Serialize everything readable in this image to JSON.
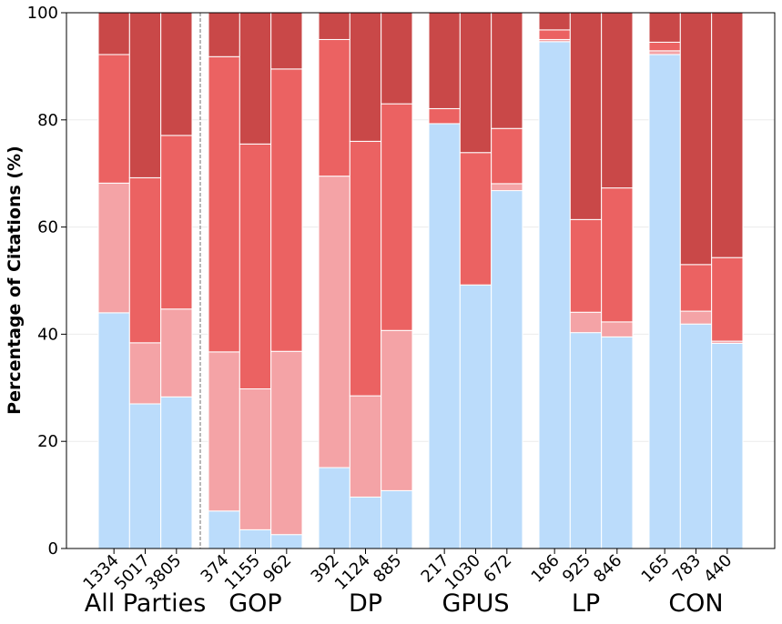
{
  "chart_data": {
    "type": "bar",
    "stacked": true,
    "ylabel": "Percentage of Citations (%)",
    "xlabel": "",
    "ylim": [
      0,
      100
    ],
    "yticks": [
      "0",
      "20",
      "40",
      "60",
      "80",
      "100"
    ],
    "grid": "horizontal",
    "separator_after_group": "All Parties",
    "segment_colors": [
      "#bbdcfb",
      "#f4a3a6",
      "#eb6262",
      "#c94848"
    ],
    "groups": [
      {
        "name": "All Parties",
        "bars": [
          {
            "label": "1334",
            "segments": [
              44,
              24.2,
              24,
              7.8
            ]
          },
          {
            "label": "5017",
            "segments": [
              27,
              11.4,
              30.8,
              30.8
            ]
          },
          {
            "label": "3805",
            "segments": [
              28.3,
              16.4,
              32.4,
              22.9
            ]
          }
        ]
      },
      {
        "name": "GOP",
        "bars": [
          {
            "label": "374",
            "segments": [
              7,
              29.7,
              55.1,
              8.2
            ]
          },
          {
            "label": "1155",
            "segments": [
              3.5,
              26.3,
              45.7,
              24.5
            ]
          },
          {
            "label": "962",
            "segments": [
              2.6,
              34.2,
              52.7,
              10.5
            ]
          }
        ]
      },
      {
        "name": "DP",
        "bars": [
          {
            "label": "392",
            "segments": [
              15.1,
              54.4,
              25.5,
              5
            ]
          },
          {
            "label": "1124",
            "segments": [
              9.6,
              18.9,
              47.5,
              24
            ]
          },
          {
            "label": "885",
            "segments": [
              10.8,
              29.9,
              42.3,
              17
            ]
          }
        ]
      },
      {
        "name": "GPUS",
        "bars": [
          {
            "label": "217",
            "segments": [
              79.3,
              0,
              2.8,
              17.9
            ]
          },
          {
            "label": "1030",
            "segments": [
              49.2,
              0,
              24.7,
              26.1
            ]
          },
          {
            "label": "672",
            "segments": [
              66.8,
              1.3,
              10.3,
              21.6
            ]
          }
        ]
      },
      {
        "name": "LP",
        "bars": [
          {
            "label": "186",
            "segments": [
              94.6,
              0.4,
              1.8,
              3.2
            ]
          },
          {
            "label": "925",
            "segments": [
              40.3,
              3.8,
              17.3,
              38.6
            ]
          },
          {
            "label": "846",
            "segments": [
              39.5,
              2.8,
              25,
              32.7
            ]
          }
        ]
      },
      {
        "name": "CON",
        "bars": [
          {
            "label": "165",
            "segments": [
              92.2,
              0.7,
              1.6,
              5.5
            ]
          },
          {
            "label": "783",
            "segments": [
              41.9,
              2.4,
              8.7,
              47
            ]
          },
          {
            "label": "440",
            "segments": [
              38.3,
              0.4,
              15.6,
              45.7
            ]
          }
        ]
      }
    ]
  }
}
